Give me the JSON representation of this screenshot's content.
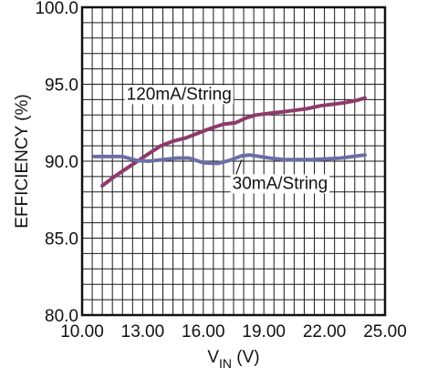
{
  "chart_data": {
    "type": "line",
    "title": "",
    "xlabel": {
      "main": "V",
      "subscript": "IN",
      "unit": " (V)"
    },
    "ylabel": "EFFICIENCY (%)",
    "xlim": [
      10.0,
      25.0
    ],
    "ylim": [
      80.0,
      100.0
    ],
    "x_ticks": [
      "10.00",
      "13.00",
      "16.00",
      "19.00",
      "22.00",
      "25.00"
    ],
    "y_ticks": [
      "80.0",
      "85.0",
      "90.0",
      "95.0",
      "100.0"
    ],
    "grid": true,
    "series": [
      {
        "name": "120mA/String",
        "color": "#8e3a6b",
        "points": [
          [
            11.0,
            88.4
          ],
          [
            11.6,
            89.0
          ],
          [
            12.4,
            89.7
          ],
          [
            13.2,
            90.4
          ],
          [
            13.9,
            91.0
          ],
          [
            14.5,
            91.3
          ],
          [
            15.1,
            91.5
          ],
          [
            15.7,
            91.8
          ],
          [
            16.3,
            92.1
          ],
          [
            17.0,
            92.4
          ],
          [
            17.6,
            92.5
          ],
          [
            18.1,
            92.8
          ],
          [
            18.6,
            93.0
          ],
          [
            19.2,
            93.1
          ],
          [
            19.9,
            93.2
          ],
          [
            20.5,
            93.3
          ],
          [
            21.1,
            93.4
          ],
          [
            21.8,
            93.6
          ],
          [
            22.4,
            93.7
          ],
          [
            23.0,
            93.8
          ],
          [
            23.6,
            93.95
          ],
          [
            24.0,
            94.1
          ]
        ]
      },
      {
        "name": "30mA/String",
        "color": "#6b6fa6",
        "points": [
          [
            10.6,
            90.3
          ],
          [
            11.3,
            90.3
          ],
          [
            12.0,
            90.3
          ],
          [
            12.7,
            90.05
          ],
          [
            13.3,
            90.0
          ],
          [
            14.0,
            90.1
          ],
          [
            14.7,
            90.2
          ],
          [
            15.3,
            90.2
          ],
          [
            16.0,
            89.9
          ],
          [
            16.7,
            89.85
          ],
          [
            17.3,
            90.05
          ],
          [
            17.9,
            90.35
          ],
          [
            18.3,
            90.4
          ],
          [
            18.8,
            90.3
          ],
          [
            19.3,
            90.2
          ],
          [
            20.0,
            90.1
          ],
          [
            20.7,
            90.1
          ],
          [
            21.4,
            90.1
          ],
          [
            22.1,
            90.15
          ],
          [
            22.8,
            90.2
          ],
          [
            23.4,
            90.3
          ],
          [
            24.0,
            90.4
          ]
        ]
      }
    ],
    "annotations": [
      {
        "text": "120mA/String",
        "series": "120mA/String"
      },
      {
        "text": "30mA/String",
        "series": "30mA/String"
      }
    ]
  }
}
